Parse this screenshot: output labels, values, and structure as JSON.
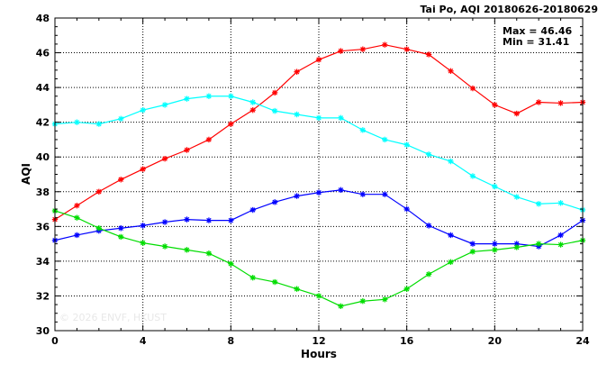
{
  "chart_data": {
    "type": "line",
    "title": "Tai Po, AQI 20180626-20180629",
    "xlabel": "Hours",
    "ylabel": "AQI",
    "xlim": [
      0,
      24
    ],
    "ylim": [
      30,
      48
    ],
    "xticks": [
      0,
      4,
      8,
      12,
      16,
      20,
      24
    ],
    "yticks": [
      30,
      32,
      34,
      36,
      38,
      40,
      42,
      44,
      46,
      48
    ],
    "grid": true,
    "legend": "none",
    "annotations": {
      "max": "Max = 46.46",
      "min": "Min = 31.41"
    },
    "watermark": "© 2026 ENVF, HKUST",
    "x": [
      0,
      1,
      2,
      3,
      4,
      5,
      6,
      7,
      8,
      9,
      10,
      11,
      12,
      13,
      14,
      15,
      16,
      17,
      18,
      19,
      20,
      21,
      22,
      23,
      24
    ],
    "series": [
      {
        "color": "#ff0000",
        "values": [
          36.4,
          37.2,
          38.0,
          38.7,
          39.3,
          39.9,
          40.4,
          41.0,
          41.9,
          42.7,
          43.7,
          44.9,
          45.6,
          46.1,
          46.2,
          46.46,
          46.2,
          45.9,
          44.95,
          43.95,
          43.0,
          42.5,
          43.15,
          43.1,
          43.15
        ]
      },
      {
        "color": "#00ffff",
        "values": [
          41.9,
          42.0,
          41.9,
          42.2,
          42.7,
          43.0,
          43.35,
          43.5,
          43.5,
          43.15,
          42.65,
          42.45,
          42.25,
          42.25,
          41.55,
          41.0,
          40.7,
          40.15,
          39.75,
          38.9,
          38.3,
          37.7,
          37.3,
          37.35,
          36.95
        ]
      },
      {
        "color": "#0000ff",
        "values": [
          35.2,
          35.5,
          35.75,
          35.9,
          36.05,
          36.25,
          36.4,
          36.35,
          36.35,
          36.95,
          37.4,
          37.75,
          37.95,
          38.1,
          37.85,
          37.85,
          37.0,
          36.05,
          35.5,
          35.0,
          35.0,
          35.0,
          34.85,
          35.5,
          36.35
        ]
      },
      {
        "color": "#00dd00",
        "values": [
          36.9,
          36.5,
          35.9,
          35.4,
          35.05,
          34.85,
          34.65,
          34.45,
          33.85,
          33.05,
          32.8,
          32.4,
          32.0,
          31.41,
          31.7,
          31.8,
          32.4,
          33.25,
          33.95,
          34.55,
          34.65,
          34.8,
          35.0,
          34.95,
          35.2
        ]
      }
    ]
  }
}
